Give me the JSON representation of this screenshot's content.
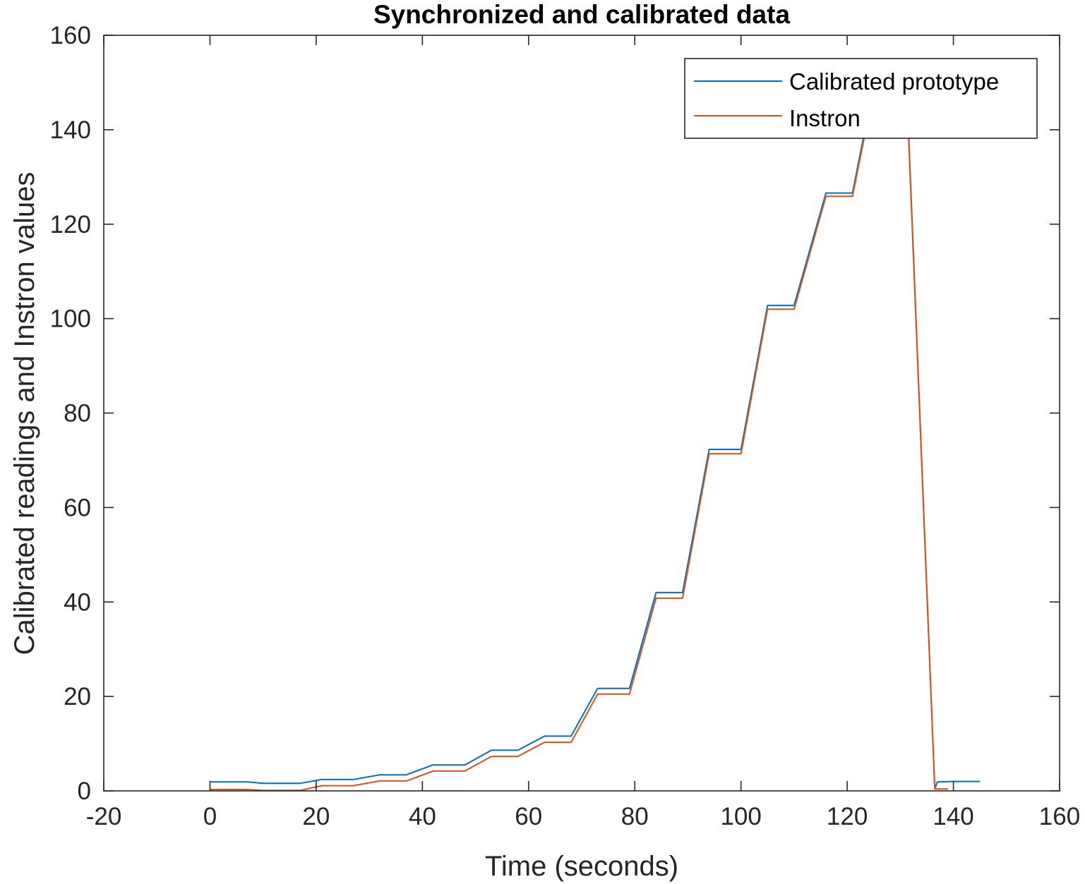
{
  "chart_data": {
    "type": "line",
    "title": "Synchronized and calibrated data",
    "xlabel": "Time (seconds)",
    "ylabel": "Calibrated readings and Instron values",
    "xlim": [
      -20,
      160
    ],
    "ylim": [
      0,
      160
    ],
    "xticks": [
      "-20",
      "0",
      "20",
      "40",
      "60",
      "80",
      "100",
      "120",
      "140",
      "160"
    ],
    "yticks": [
      "0",
      "20",
      "40",
      "60",
      "80",
      "100",
      "120",
      "140",
      "160"
    ],
    "grid": false,
    "legend_position": "top-right",
    "series": [
      {
        "name": "Calibrated prototype",
        "color": "#0072BD",
        "x": [
          0,
          7,
          10,
          17,
          21,
          27,
          32,
          37,
          42,
          48,
          53,
          58,
          63,
          68,
          73,
          79,
          84,
          89,
          94,
          100,
          105,
          110,
          116,
          121,
          126,
          131,
          136.5,
          137,
          140,
          145
        ],
        "y": [
          1.9,
          1.9,
          1.6,
          1.6,
          2.4,
          2.4,
          3.4,
          3.4,
          5.5,
          5.5,
          8.6,
          8.6,
          11.6,
          11.6,
          21.7,
          21.7,
          42,
          42,
          72.3,
          72.3,
          102.8,
          102.8,
          126.6,
          126.6,
          155,
          155,
          0.5,
          1.9,
          2,
          2
        ]
      },
      {
        "name": "Instron",
        "color": "#D95319",
        "x": [
          0,
          7,
          10,
          17,
          21,
          27,
          32,
          37,
          42,
          48,
          53,
          58,
          63,
          68,
          73,
          79,
          84,
          89,
          94,
          100,
          105,
          110,
          116,
          121,
          126,
          131,
          136.5,
          139
        ],
        "y": [
          0.3,
          0.3,
          0.1,
          0.1,
          1.1,
          1.1,
          2.1,
          2.1,
          4.2,
          4.2,
          7.3,
          7.3,
          10.3,
          10.3,
          20.5,
          20.5,
          40.8,
          40.8,
          71.4,
          71.4,
          102,
          102,
          125.9,
          125.9,
          154,
          154,
          0.4,
          0.4
        ]
      }
    ]
  }
}
